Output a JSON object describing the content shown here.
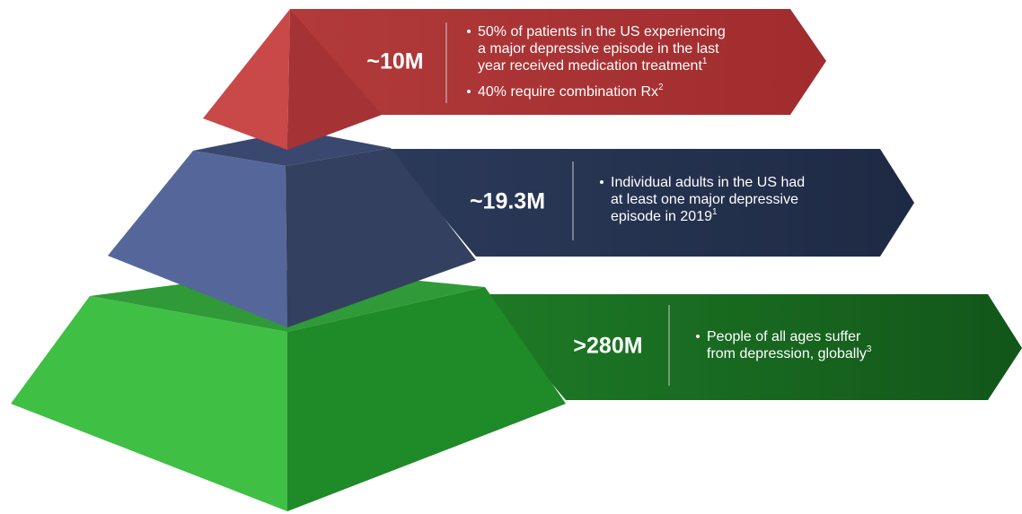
{
  "tiers": [
    {
      "value": "~10M",
      "bullets": [
        {
          "lines": [
            "50% of patients in the US experiencing",
            "a major depressive episode in the last",
            "year received medication treatment"
          ],
          "sup": "1"
        },
        {
          "lines": [
            "40% require combination Rx"
          ],
          "sup": "2"
        }
      ]
    },
    {
      "value": "~19.3M",
      "bullets": [
        {
          "lines": [
            "Individual adults in the US had",
            "at least one major depressive",
            "episode in 2019"
          ],
          "sup": "1"
        }
      ]
    },
    {
      "value": ">280M",
      "bullets": [
        {
          "lines": [
            "People of all ages suffer",
            "from depression, globally"
          ],
          "sup": "3"
        }
      ]
    }
  ]
}
